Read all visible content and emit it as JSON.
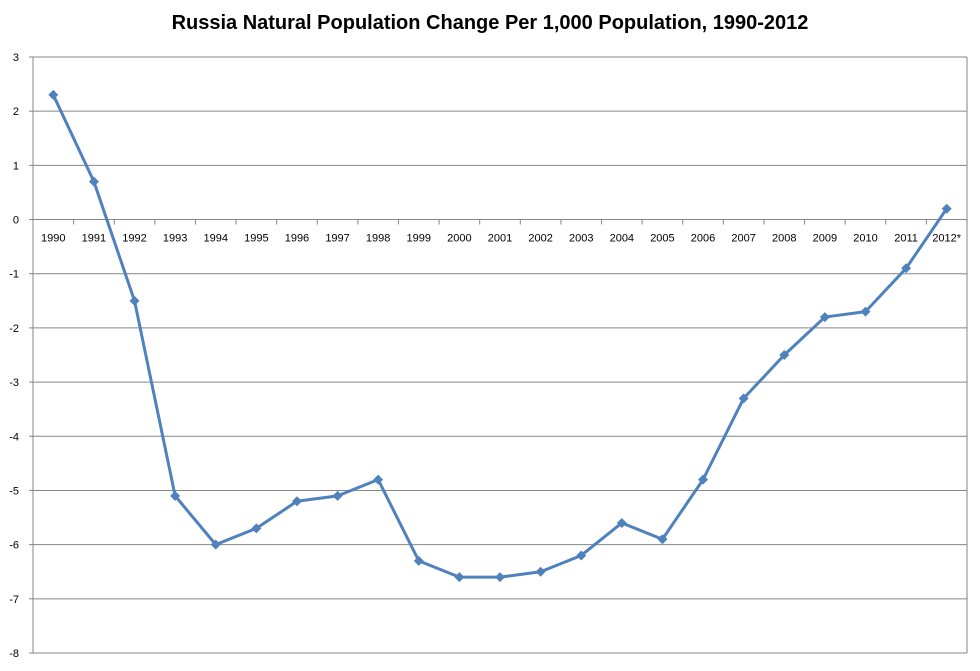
{
  "chart_data": {
    "type": "line",
    "title": "Russia Natural Population Change Per 1,000 Population, 1990-2012",
    "xlabel": "",
    "ylabel": "",
    "ylim": [
      -8,
      3
    ],
    "yticks": [
      3,
      2,
      1,
      0,
      -1,
      -2,
      -3,
      -4,
      -5,
      -6,
      -7,
      -8
    ],
    "grid": true,
    "categories": [
      "1990",
      "1991",
      "1992",
      "1993",
      "1994",
      "1995",
      "1996",
      "1997",
      "1998",
      "1999",
      "2000",
      "2001",
      "2002",
      "2003",
      "2004",
      "2005",
      "2006",
      "2007",
      "2008",
      "2009",
      "2010",
      "2011",
      "2012*"
    ],
    "series": [
      {
        "values": [
          2.3,
          0.7,
          -1.5,
          -5.1,
          -6.0,
          -5.7,
          -5.2,
          -5.1,
          -4.8,
          -6.3,
          -6.6,
          -6.6,
          -6.5,
          -6.2,
          -5.6,
          -5.9,
          -4.8,
          -3.3,
          -2.5,
          -1.8,
          -1.7,
          -0.9,
          0.2
        ]
      }
    ],
    "colors": {
      "line": "#4f81bd",
      "grid": "#868686",
      "axis": "#868686"
    }
  }
}
